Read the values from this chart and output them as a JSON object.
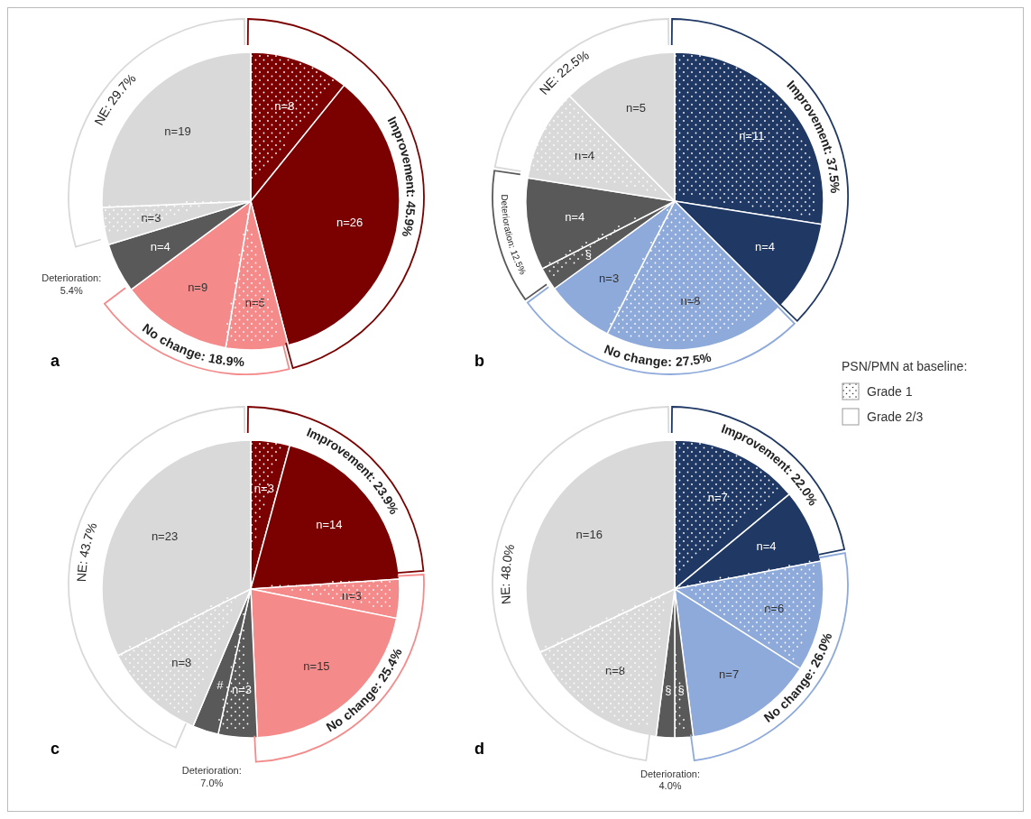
{
  "chart_data": [
    {
      "type": "pie",
      "title": "a",
      "categories": [
        null,
        null,
        null,
        null,
        null,
        null,
        null
      ],
      "values": [
        8,
        26,
        5,
        9,
        4,
        3,
        19
      ],
      "colors": [
        "#7b0000",
        "#7b0000",
        "#f58a8a",
        "#f58a8a",
        "#595959",
        "#d9d9d9",
        "#d9d9d9"
      ],
      "value_labels": [
        "n=8",
        "n=26",
        "n=5",
        "n=9",
        "n=4",
        "n=3",
        "n=19"
      ],
      "annotations": [
        "Improvement: 45.9%",
        "No change: 18.9%",
        "Deterioration: 5.4%",
        "NE: 29.7%"
      ]
    },
    {
      "type": "pie",
      "title": "b",
      "categories": [
        null,
        null,
        null,
        null,
        null,
        null,
        null,
        null
      ],
      "values": [
        11,
        4,
        8,
        3,
        1,
        4,
        4,
        5
      ],
      "colors": [
        "#1f3864",
        "#1f3864",
        "#8eaadb",
        "#8eaadb",
        "#595959",
        "#595959",
        "#d9d9d9",
        "#d9d9d9"
      ],
      "value_labels": [
        "n=11",
        "n=4",
        "n=8",
        "n=3",
        "§",
        "n=4",
        "n=4",
        "n=5"
      ],
      "annotations": [
        "Improvement: 37.5%",
        "No change: 27.5%",
        "Deterioration: 12.5%",
        "NE: 22.5%"
      ]
    },
    {
      "type": "pie",
      "title": "c",
      "categories": [
        null,
        null,
        null,
        null,
        null,
        null,
        null,
        null
      ],
      "values": [
        3,
        14,
        3,
        15,
        3,
        2,
        8,
        23
      ],
      "colors": [
        "#7b0000",
        "#7b0000",
        "#f58a8a",
        "#f58a8a",
        "#595959",
        "#595959",
        "#d9d9d9",
        "#d9d9d9"
      ],
      "value_labels": [
        "n=3",
        "n=14",
        "n=3",
        "n=15",
        "n=3",
        "#",
        "n=8",
        "n=23"
      ],
      "annotations": [
        "Improvement: 23.9%",
        "No change: 25.4%",
        "Deterioration: 7.0%",
        "NE: 43.7%"
      ]
    },
    {
      "type": "pie",
      "title": "d",
      "categories": [
        null,
        null,
        null,
        null,
        null,
        null,
        null,
        null
      ],
      "values": [
        7,
        4,
        6,
        7,
        1,
        1,
        8,
        16
      ],
      "colors": [
        "#1f3864",
        "#1f3864",
        "#8eaadb",
        "#8eaadb",
        "#595959",
        "#595959",
        "#d9d9d9",
        "#d9d9d9"
      ],
      "value_labels": [
        "n=7",
        "n=4",
        "n=6",
        "n=7",
        "§",
        "§",
        "n=8",
        "n=16"
      ],
      "annotations": [
        "Improvement: 22.0%",
        "No change: 26.0%",
        "Deterioration: 4.0%",
        "NE: 48.0%"
      ]
    },
    {
      "type": "other",
      "title": "PSN/PMN at baseline:",
      "annotations": [
        "Grade 1",
        "Grade 2/3"
      ]
    }
  ]
}
